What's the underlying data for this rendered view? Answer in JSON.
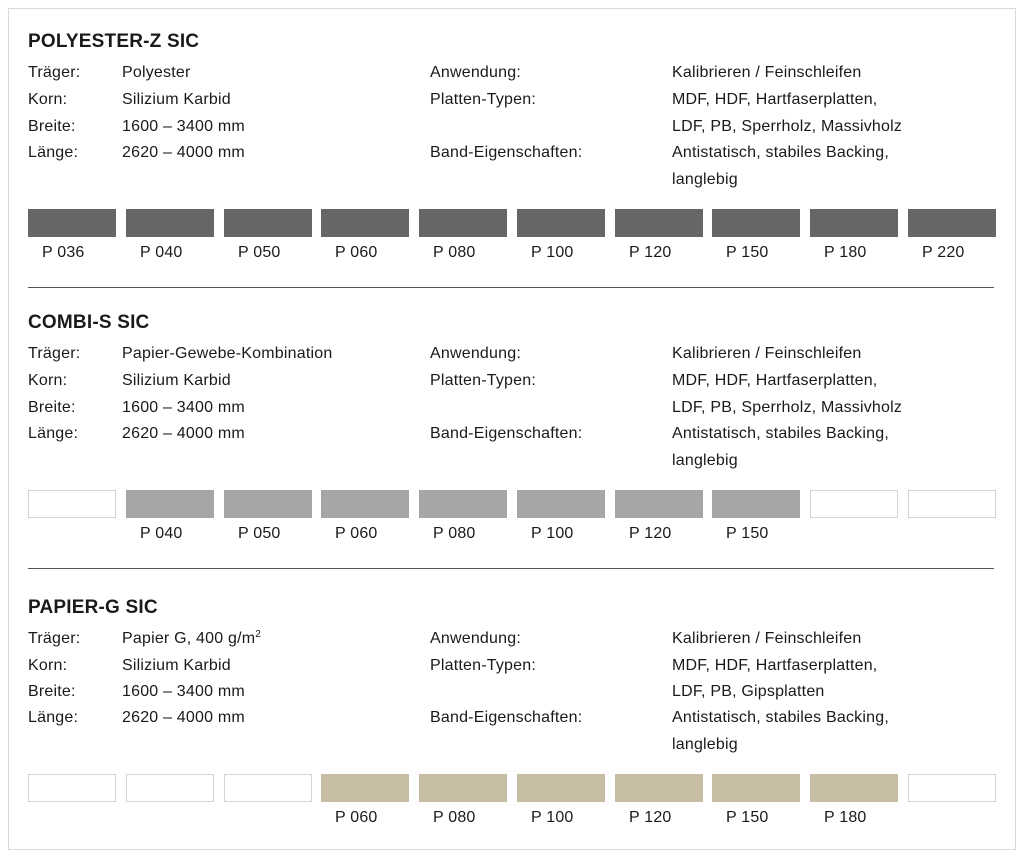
{
  "sections": [
    {
      "title": "POLYESTER-Z SIC",
      "traeger_label": "Träger:",
      "traeger_value": "Polyester",
      "korn_label": "Korn:",
      "korn_value": "Silizium Karbid",
      "breite_label": "Breite:",
      "breite_value": "1600 – 3400 mm",
      "laenge_label": "Länge:",
      "laenge_value": "2620 – 4000 mm",
      "anwendung_label": "Anwendung:",
      "anwendung_value": "Kalibrieren / Feinschleifen",
      "platten_label": "Platten-Typen:",
      "platten_line1": "MDF, HDF, Hartfaserplatten,",
      "platten_line2": "LDF, PB, Sperrholz, Massivholz",
      "band_label": "Band-Eigenschaften:",
      "band_line1": "Antistatisch, stabiles Backing,",
      "band_line2": "langlebig",
      "bar_color": "#666666",
      "grits": [
        "P 036",
        "P 040",
        "P 050",
        "P 060",
        "P 080",
        "P 100",
        "P 120",
        "P 150",
        "P 180",
        "P 220"
      ]
    },
    {
      "title": "COMBI-S SIC",
      "traeger_label": "Träger:",
      "traeger_value": "Papier-Gewebe-Kombination",
      "korn_label": "Korn:",
      "korn_value": "Silizium Karbid",
      "breite_label": "Breite:",
      "breite_value": "1600 – 3400 mm",
      "laenge_label": "Länge:",
      "laenge_value": "2620 – 4000 mm",
      "anwendung_label": "Anwendung:",
      "anwendung_value": "Kalibrieren / Feinschleifen",
      "platten_label": "Platten-Typen:",
      "platten_line1": "MDF, HDF, Hartfaserplatten,",
      "platten_line2": "LDF, PB, Sperrholz, Massivholz",
      "band_label": "Band-Eigenschaften:",
      "band_line1": "Antistatisch, stabiles Backing,",
      "band_line2": "langlebig",
      "bar_color": "#a6a6a6",
      "grits": [
        "",
        "P 040",
        "P 050",
        "P 060",
        "P 080",
        "P 100",
        "P 120",
        "P 150",
        "",
        ""
      ]
    },
    {
      "title": "PAPIER-G SIC",
      "traeger_label": "Träger:",
      "traeger_value": "Papier G, 400 g/m",
      "traeger_sup": "2",
      "korn_label": "Korn:",
      "korn_value": "Silizium Karbid",
      "breite_label": "Breite:",
      "breite_value": "1600 – 3400 mm",
      "laenge_label": "Länge:",
      "laenge_value": "2620 – 4000 mm",
      "anwendung_label": "Anwendung:",
      "anwendung_value": "Kalibrieren / Feinschleifen",
      "platten_label": "Platten-Typen:",
      "platten_line1": "MDF, HDF, Hartfaserplatten,",
      "platten_line2": "LDF, PB, Gipsplatten",
      "band_label": "Band-Eigenschaften:",
      "band_line1": "Antistatisch, stabiles Backing,",
      "band_line2": "langlebig",
      "bar_color": "#c8bda5",
      "grits": [
        "",
        "",
        "",
        "P 060",
        "P 080",
        "P 100",
        "P 120",
        "P 150",
        "P 180",
        ""
      ]
    }
  ]
}
